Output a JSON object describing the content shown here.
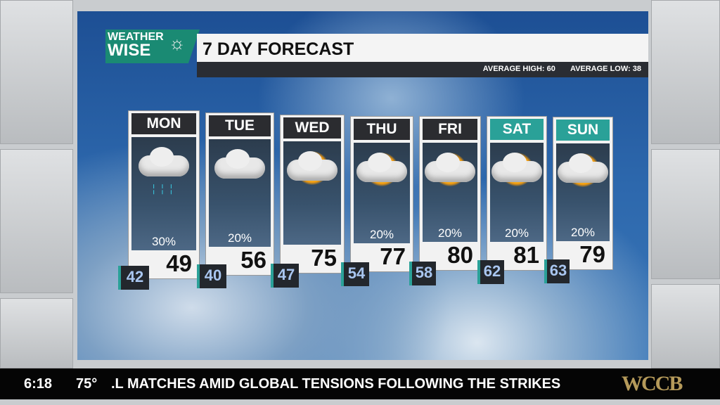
{
  "graphic": {
    "logo": "WEATHER WISE",
    "logo_line1": "WEATHER",
    "logo_line2": "WISE",
    "title": "7 DAY FORECAST",
    "average_high": "AVERAGE HIGH: 60",
    "average_low": "AVERAGE LOW: 38",
    "weekend_color": "#2aa198"
  },
  "days": [
    {
      "day": "MON",
      "condition": "rain-cloud-icon",
      "precip": "30%",
      "high": "49",
      "low": "42"
    },
    {
      "day": "TUE",
      "condition": "cloud-icon",
      "precip": "20%",
      "high": "56",
      "low": "40"
    },
    {
      "day": "WED",
      "condition": "partly-sunny-icon",
      "precip": "",
      "high": "75",
      "low": "47"
    },
    {
      "day": "THU",
      "condition": "partly-sunny-icon",
      "precip": "20%",
      "high": "77",
      "low": "54"
    },
    {
      "day": "FRI",
      "condition": "partly-sunny-icon",
      "precip": "20%",
      "high": "80",
      "low": "58"
    },
    {
      "day": "SAT",
      "condition": "partly-sunny-icon",
      "precip": "20%",
      "high": "81",
      "low": "62",
      "weekend": true
    },
    {
      "day": "SUN",
      "condition": "partly-sunny-icon",
      "precip": "20%",
      "high": "79",
      "low": "63",
      "weekend": true
    }
  ],
  "ticker": {
    "time": "6:18",
    "temp": "75°",
    "headline": ".L MATCHES AMID GLOBAL TENSIONS FOLLOWING THE STRIKES",
    "station": "WCCB"
  }
}
